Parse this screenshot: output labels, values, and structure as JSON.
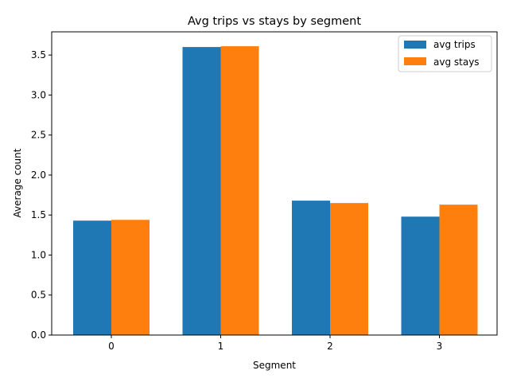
{
  "chart_data": {
    "type": "bar",
    "title": "Avg trips vs stays by segment",
    "xlabel": "Segment",
    "ylabel": "Average count",
    "categories": [
      "0",
      "1",
      "2",
      "3"
    ],
    "series": [
      {
        "name": "avg trips",
        "color": "#1f77b4",
        "values": [
          1.43,
          3.6,
          1.68,
          1.48
        ]
      },
      {
        "name": "avg stays",
        "color": "#ff7f0e",
        "values": [
          1.44,
          3.61,
          1.65,
          1.63
        ]
      }
    ],
    "ylim": [
      0,
      3.79
    ],
    "yticks": [
      0.0,
      0.5,
      1.0,
      1.5,
      2.0,
      2.5,
      3.0,
      3.5
    ],
    "ytick_labels": [
      "0.0",
      "0.5",
      "1.0",
      "1.5",
      "2.0",
      "2.5",
      "3.0",
      "3.5"
    ],
    "grid": false,
    "legend_position": "top-right"
  }
}
